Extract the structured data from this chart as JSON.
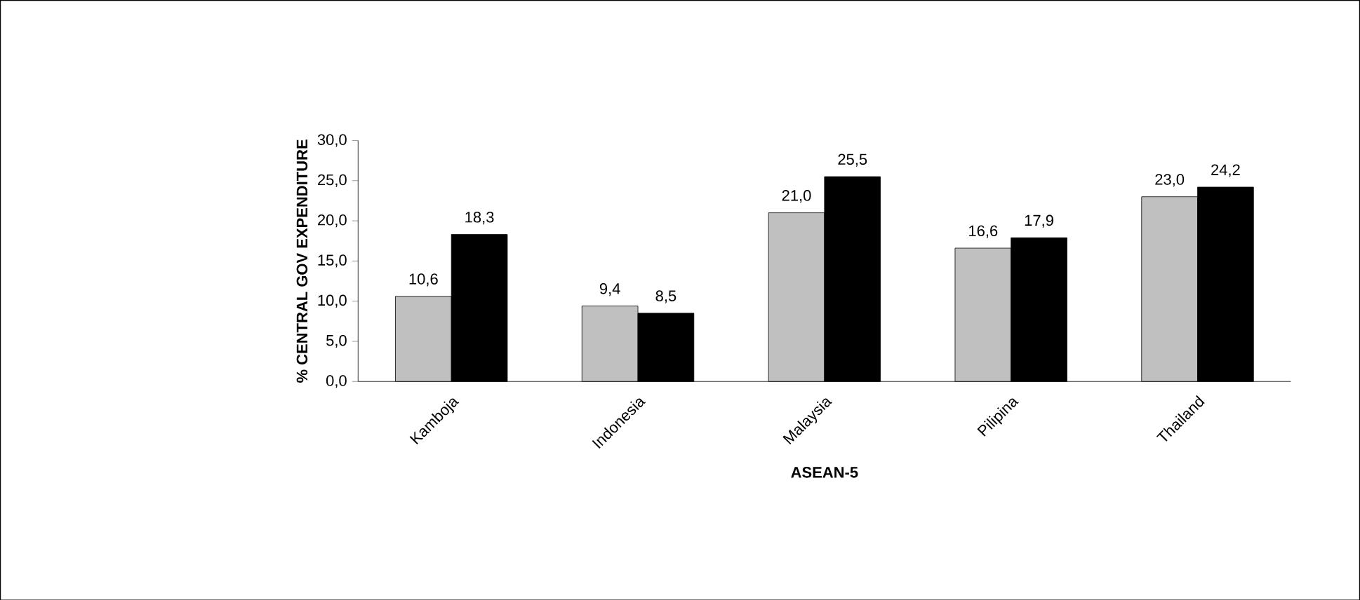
{
  "chart_data": {
    "type": "bar",
    "xlabel": "ASEAN-5",
    "ylabel": "% CENTRAL GOV EXPENDITURE",
    "categories": [
      "Kamboja",
      "Indonesia",
      "Malaysia",
      "Pilipina",
      "Thailand"
    ],
    "series": [
      {
        "color": "#c0c0c0",
        "values": [
          10.6,
          9.4,
          21.0,
          16.6,
          23.0
        ],
        "value_labels": [
          "10,6",
          "9,4",
          "21,0",
          "16,6",
          "23,0"
        ]
      },
      {
        "color": "#000000",
        "values": [
          18.3,
          8.5,
          25.5,
          17.9,
          24.2
        ],
        "value_labels": [
          "18,3",
          "8,5",
          "25,5",
          "17,9",
          "24,2"
        ]
      }
    ],
    "ylim": [
      0,
      30
    ],
    "yticks": [
      {
        "value": 0,
        "label": "0,0"
      },
      {
        "value": 5,
        "label": "5,0"
      },
      {
        "value": 10,
        "label": "10,0"
      },
      {
        "value": 15,
        "label": "15,0"
      },
      {
        "value": 20,
        "label": "20,0"
      },
      {
        "value": 25,
        "label": "25,0"
      },
      {
        "value": 30,
        "label": "30,0"
      }
    ],
    "grid": false
  }
}
